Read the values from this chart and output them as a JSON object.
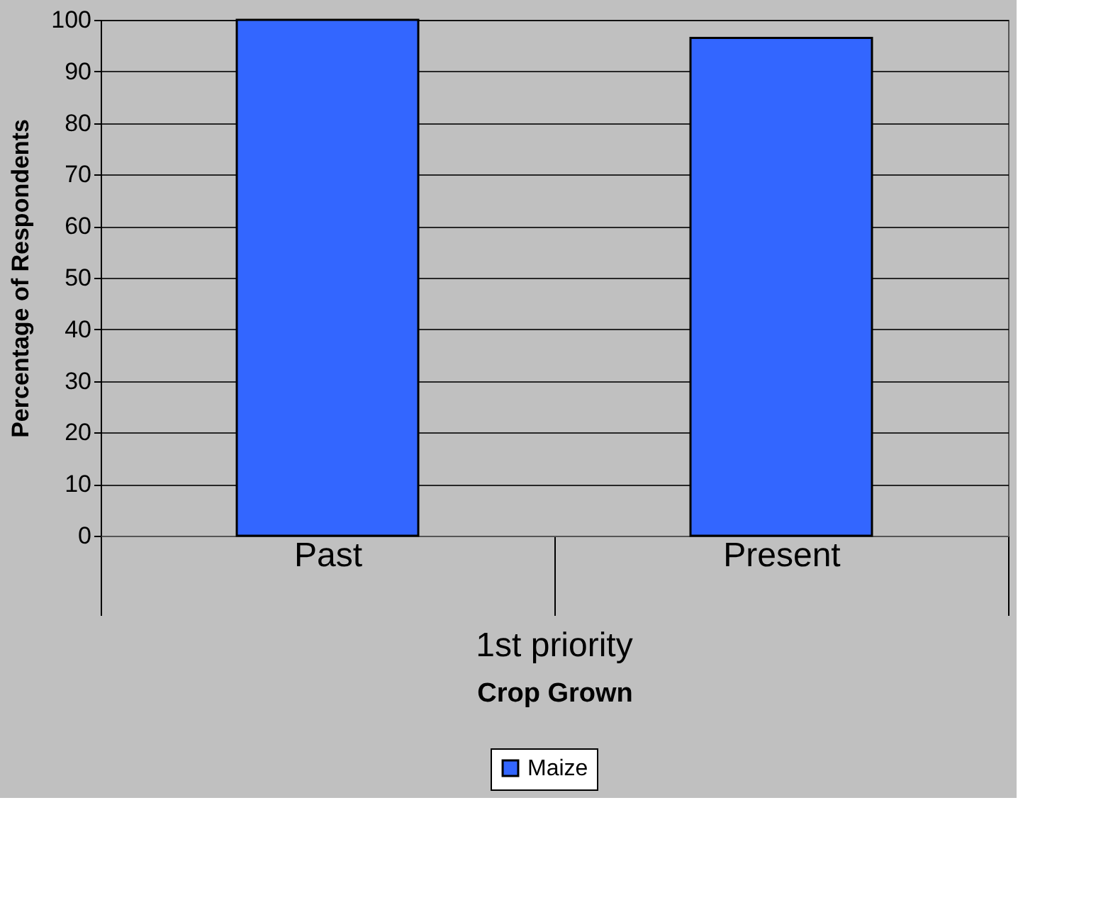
{
  "chart_data": {
    "type": "bar",
    "ylabel": "Percentage of Respondents",
    "xlabel": "Crop Grown",
    "categories": [
      "Past",
      "Present"
    ],
    "series": [
      {
        "name": "Maize",
        "color": "#3366ff",
        "values": [
          100,
          96.5
        ]
      }
    ],
    "ylim": [
      0,
      100
    ],
    "yticks": [
      0,
      10,
      20,
      30,
      40,
      50,
      60,
      70,
      80,
      90,
      100
    ],
    "annotations": [
      "1st priority"
    ],
    "grid": "y",
    "legend": "bottom"
  }
}
